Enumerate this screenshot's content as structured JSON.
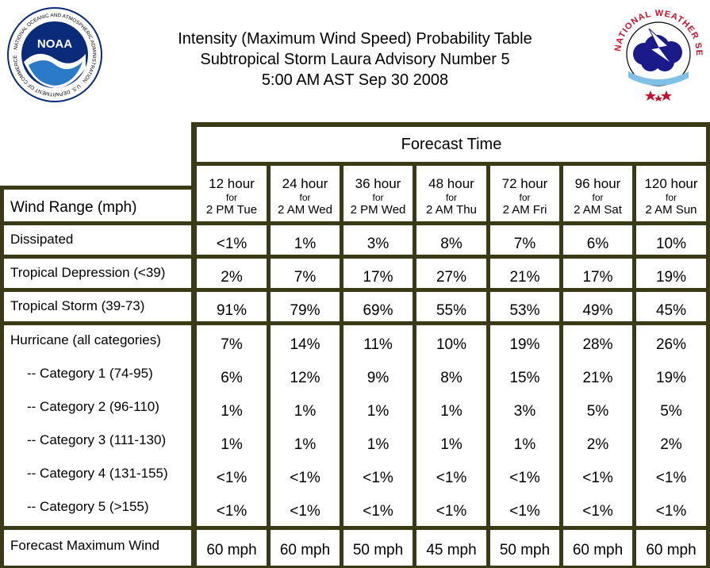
{
  "header": {
    "title_lines": [
      "Intensity (Maximum Wind Speed) Probability Table",
      "Subtropical Storm Laura Advisory Number 5",
      "5:00 AM AST Sep 30 2008"
    ],
    "noaa_logo": {
      "text": "NOAA",
      "ring_text": "NATIONAL OCEANIC AND ATMOSPHERIC ADMINISTRATION · U.S. DEPARTMENT OF COMMERCE"
    },
    "nws_logo": {
      "ring_text": "NATIONAL WEATHER SERVICE"
    }
  },
  "colors": {
    "border": "#3a3a16",
    "noaa_blue": "#0a2a7a",
    "nws_red": "#c8102e"
  },
  "table": {
    "forecast_time_label": "Forecast Time",
    "wind_range_label": "Wind Range (mph)",
    "columns": [
      {
        "hours": "12 hour",
        "for": "for",
        "when": "2 PM Tue"
      },
      {
        "hours": "24 hour",
        "for": "for",
        "when": "2 AM Wed"
      },
      {
        "hours": "36 hour",
        "for": "for",
        "when": "2 PM Wed"
      },
      {
        "hours": "48 hour",
        "for": "for",
        "when": "2 AM Thu"
      },
      {
        "hours": "72 hour",
        "for": "for",
        "when": "2 AM Fri"
      },
      {
        "hours": "96 hour",
        "for": "for",
        "when": "2 AM Sat"
      },
      {
        "hours": "120 hour",
        "for": "for",
        "when": "2 AM Sun"
      }
    ],
    "rows": [
      {
        "label": "Dissipated",
        "values": [
          "<1%",
          "1%",
          "3%",
          "8%",
          "7%",
          "6%",
          "10%"
        ]
      },
      {
        "label": "Tropical Depression (<39)",
        "values": [
          "2%",
          "7%",
          "17%",
          "27%",
          "21%",
          "17%",
          "19%"
        ]
      },
      {
        "label": "Tropical Storm (39-73)",
        "values": [
          "91%",
          "79%",
          "69%",
          "55%",
          "53%",
          "49%",
          "45%"
        ]
      },
      {
        "label": "Hurricane (all categories)",
        "values": [
          "7%",
          "14%",
          "11%",
          "10%",
          "19%",
          "28%",
          "26%"
        ]
      },
      {
        "label": "-- Category 1 (74-95)",
        "values": [
          "6%",
          "12%",
          "9%",
          "8%",
          "15%",
          "21%",
          "19%"
        ]
      },
      {
        "label": "-- Category 2 (96-110)",
        "values": [
          "1%",
          "1%",
          "1%",
          "1%",
          "3%",
          "5%",
          "5%"
        ]
      },
      {
        "label": "-- Category 3 (111-130)",
        "values": [
          "1%",
          "1%",
          "1%",
          "1%",
          "1%",
          "2%",
          "2%"
        ]
      },
      {
        "label": "-- Category 4 (131-155)",
        "values": [
          "<1%",
          "<1%",
          "<1%",
          "<1%",
          "<1%",
          "<1%",
          "<1%"
        ]
      },
      {
        "label": "-- Category 5 (>155)",
        "values": [
          "<1%",
          "<1%",
          "<1%",
          "<1%",
          "<1%",
          "<1%",
          "<1%"
        ]
      },
      {
        "label": "Forecast Maximum Wind",
        "values": [
          "60 mph",
          "60 mph",
          "50 mph",
          "45 mph",
          "50 mph",
          "60 mph",
          "60 mph"
        ]
      }
    ]
  }
}
